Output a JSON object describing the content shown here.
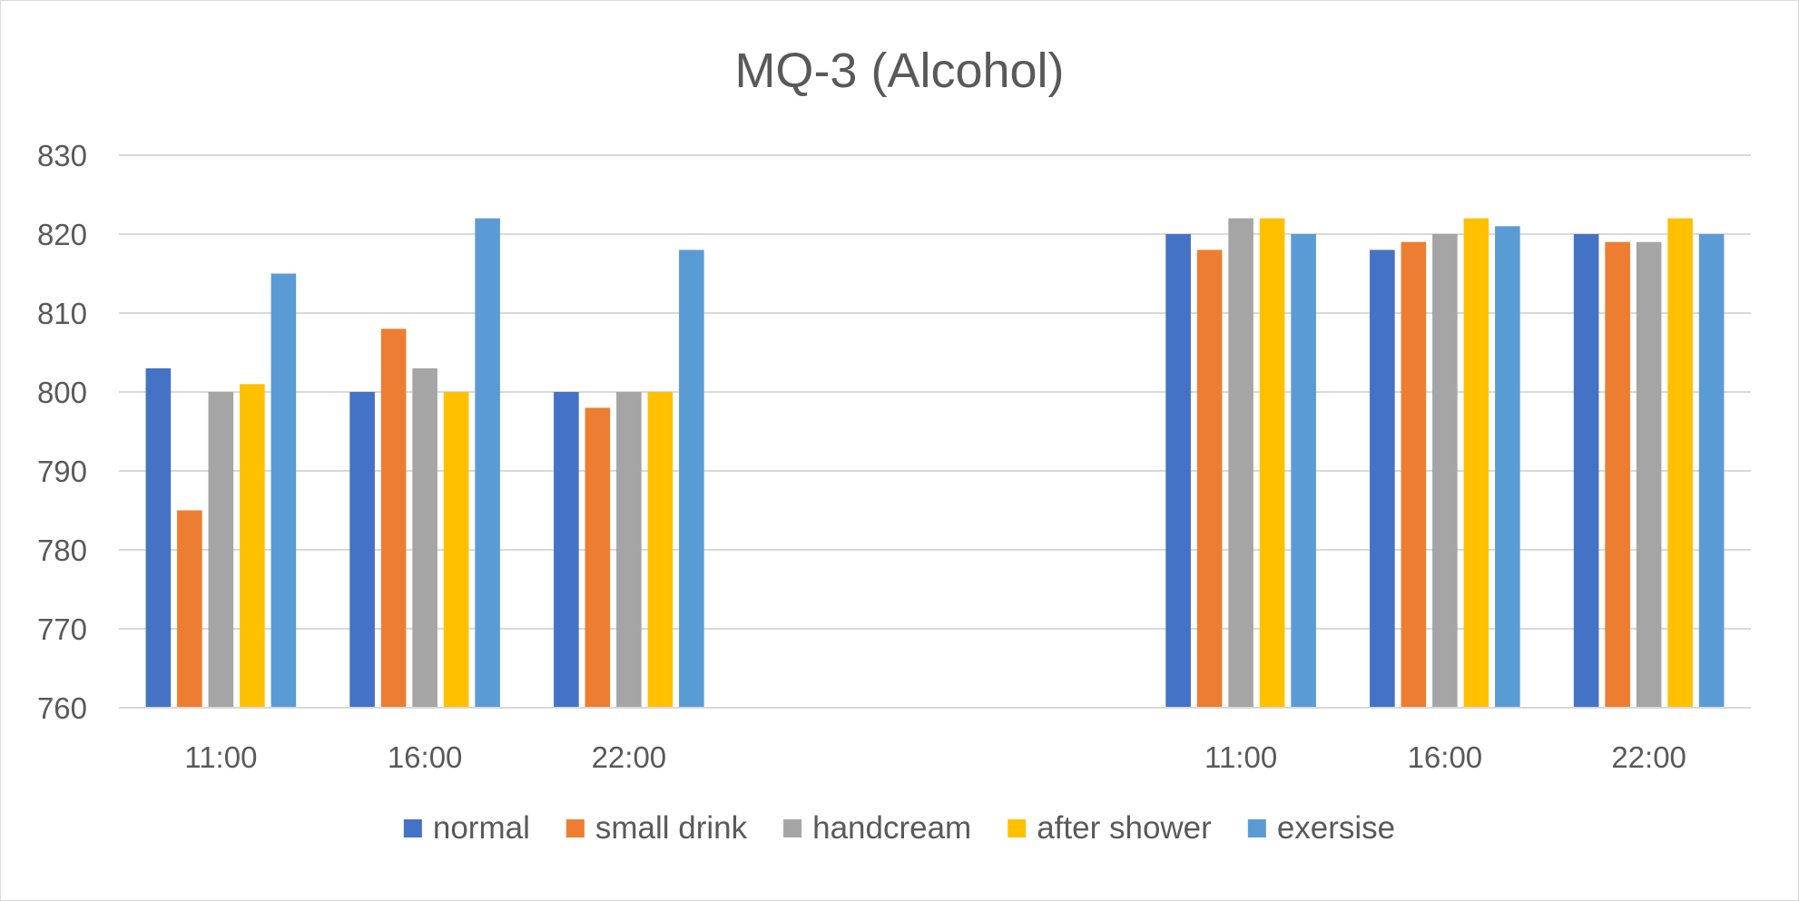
{
  "chart_data": {
    "type": "bar",
    "title": "MQ-3 (Alcohol)",
    "xlabel": "",
    "ylabel": "",
    "ylim": [
      760,
      830
    ],
    "yticks": [
      760,
      770,
      780,
      790,
      800,
      810,
      820,
      830
    ],
    "grid": true,
    "legend_position": "bottom",
    "categories": [
      "11:00",
      "16:00",
      "22:00",
      "",
      "",
      "11:00",
      "16:00",
      "22:00"
    ],
    "series": [
      {
        "name": "normal",
        "color": "#4472C4",
        "values": [
          803,
          800,
          800,
          null,
          null,
          820,
          818,
          820
        ]
      },
      {
        "name": "small drink",
        "color": "#ED7D31",
        "values": [
          785,
          808,
          798,
          null,
          null,
          818,
          819,
          819
        ]
      },
      {
        "name": "handcream",
        "color": "#A5A5A5",
        "values": [
          800,
          803,
          800,
          null,
          null,
          822,
          820,
          819
        ]
      },
      {
        "name": "after shower",
        "color": "#FFC000",
        "values": [
          801,
          800,
          800,
          null,
          null,
          822,
          822,
          822
        ]
      },
      {
        "name": "exersise",
        "color": "#5B9BD5",
        "values": [
          815,
          822,
          818,
          null,
          null,
          820,
          821,
          820
        ]
      }
    ]
  }
}
